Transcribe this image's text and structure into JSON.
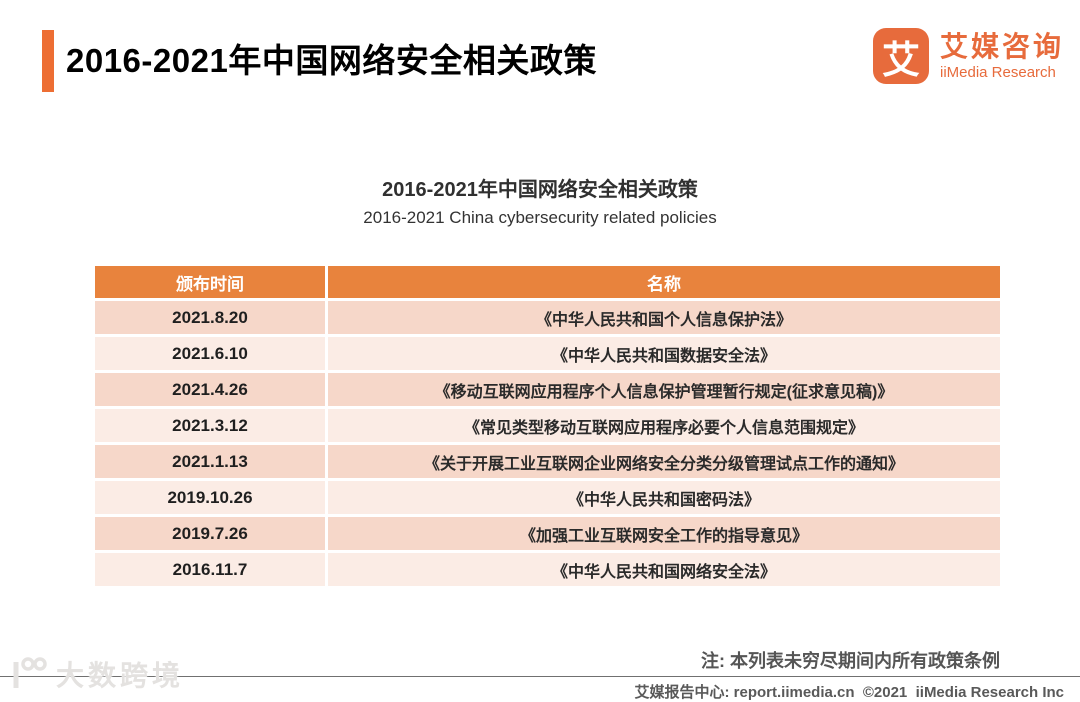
{
  "header": {
    "title": "2016-2021年中国网络安全相关政策"
  },
  "logo": {
    "glyph": "艾",
    "name_cn": "艾媒咨询",
    "name_en": "iiMedia Research"
  },
  "content": {
    "title_cn": "2016-2021年中国网络安全相关政策",
    "title_en": "2016-2021 China cybersecurity related policies"
  },
  "table": {
    "headers": [
      "颁布时间",
      "名称"
    ],
    "rows": [
      {
        "date": "2021.8.20",
        "name": "《中华人民共和国个人信息保护法》"
      },
      {
        "date": "2021.6.10",
        "name": "《中华人民共和国数据安全法》"
      },
      {
        "date": "2021.4.26",
        "name": "《移动互联网应用程序个人信息保护管理暂行规定(征求意见稿)》"
      },
      {
        "date": "2021.3.12",
        "name": "《常见类型移动互联网应用程序必要个人信息范围规定》"
      },
      {
        "date": "2021.1.13",
        "name": "《关于开展工业互联网企业网络安全分类分级管理试点工作的通知》"
      },
      {
        "date": "2019.10.26",
        "name": "《中华人民共和国密码法》"
      },
      {
        "date": "2019.7.26",
        "name": "《加强工业互联网安全工作的指导意见》"
      },
      {
        "date": "2016.11.7",
        "name": "《中华人民共和国网络安全法》"
      }
    ]
  },
  "chart_data": {
    "type": "table",
    "title": "2016-2021年中国网络安全相关政策 / 2016-2021 China cybersecurity related policies",
    "columns": [
      "颁布时间",
      "名称"
    ],
    "rows": [
      [
        "2021.8.20",
        "《中华人民共和国个人信息保护法》"
      ],
      [
        "2021.6.10",
        "《中华人民共和国数据安全法》"
      ],
      [
        "2021.4.26",
        "《移动互联网应用程序个人信息保护管理暂行规定(征求意见稿)》"
      ],
      [
        "2021.3.12",
        "《常见类型移动互联网应用程序必要个人信息范围规定》"
      ],
      [
        "2021.1.13",
        "《关于开展工业互联网企业网络安全分类分级管理试点工作的通知》"
      ],
      [
        "2019.10.26",
        "《中华人民共和国密码法》"
      ],
      [
        "2019.7.26",
        "《加强工业互联网安全工作的指导意见》"
      ],
      [
        "2016.11.7",
        "《中华人民共和国网络安全法》"
      ]
    ]
  },
  "note": "注: 本列表未穷尽期间内所有政策条例",
  "footer": "艾媒报告中心: report.iimedia.cn  ©2021  iiMedia Research Inc",
  "watermark": "大数跨境",
  "colors": {
    "accent": "#ED6E33",
    "logo_orange": "#E76B3C",
    "table_header_bg": "#E8833D",
    "row_dark_bg": "#F6D7C9",
    "row_light_bg": "#FBECE5"
  }
}
